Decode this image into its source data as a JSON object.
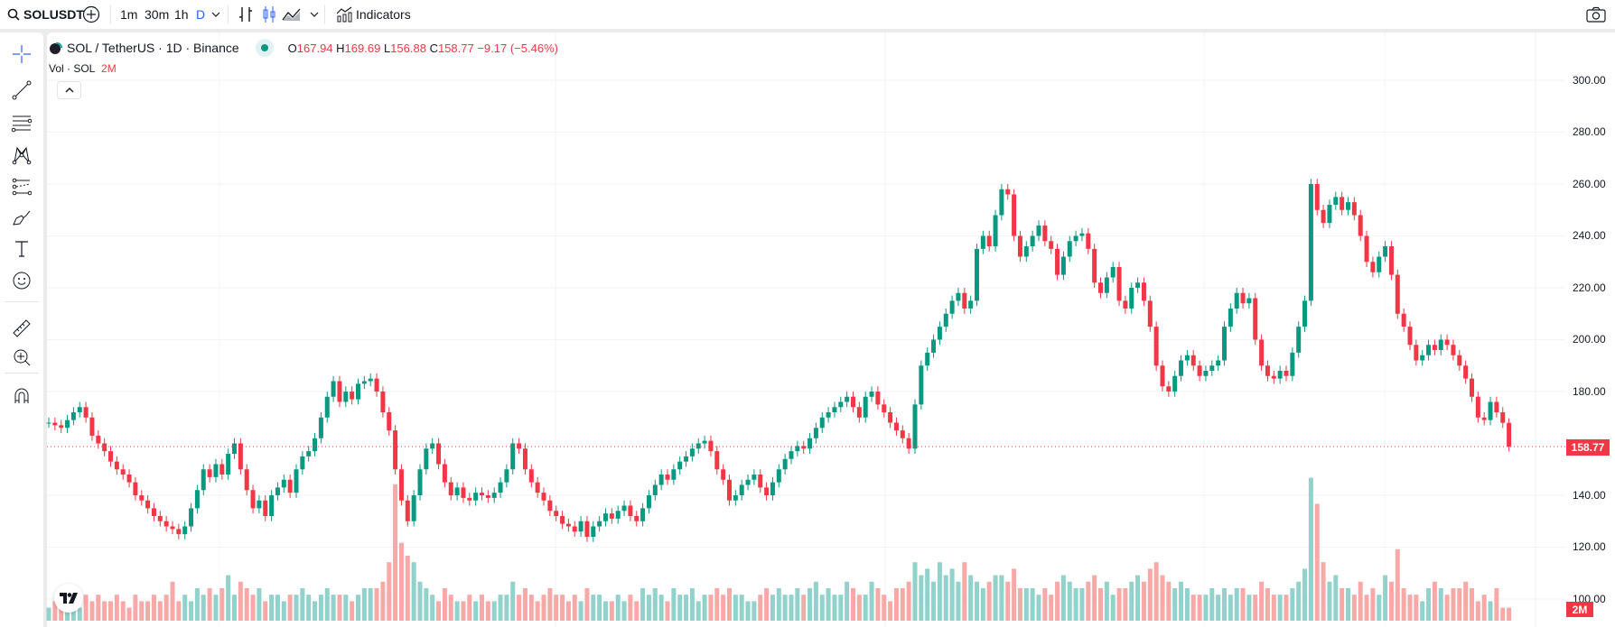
{
  "toolbar": {
    "symbol": "SOLUSDT",
    "intervals": [
      "1m",
      "30m",
      "1h",
      "D"
    ],
    "active_interval": "D",
    "indicators_label": "Indicators"
  },
  "legend": {
    "title": "SOL / TetherUS · 1D · Binance",
    "o_label": "O",
    "o": "167.94",
    "h_label": "H",
    "h": "169.69",
    "l_label": "L",
    "l": "156.88",
    "c_label": "C",
    "c": "158.77",
    "change": "−9.17 (−5.46%)",
    "status_color": "#089981"
  },
  "volume_legend": {
    "label": "Vol · SOL",
    "value": "2M"
  },
  "price_axis": {
    "labels": [
      "300.00",
      "280.00",
      "260.00",
      "240.00",
      "220.00",
      "200.00",
      "180.00",
      "140.00",
      "120.00",
      "100.00"
    ],
    "last_price": "158.77",
    "volume_badge": "2M"
  },
  "colors": {
    "up": "#089981",
    "down": "#f23645",
    "up_volume": "#92d2cc",
    "down_volume": "#f7a9a7"
  },
  "chart_data": {
    "type": "candlestick",
    "symbol": "SOL / TetherUS",
    "interval": "1D",
    "ylim": [
      100,
      300
    ],
    "last_price": 158.77,
    "last_candle": {
      "open": 167.94,
      "high": 169.69,
      "low": 156.88,
      "close": 158.77
    },
    "closes": [
      168,
      167,
      166,
      169,
      172,
      174,
      170,
      163,
      160,
      157,
      153,
      150,
      148,
      145,
      140,
      138,
      135,
      132,
      130,
      128,
      127,
      125,
      128,
      135,
      142,
      150,
      147,
      152,
      148,
      156,
      160,
      150,
      142,
      135,
      138,
      132,
      140,
      143,
      146,
      141,
      150,
      155,
      157,
      162,
      170,
      178,
      184,
      176,
      180,
      177,
      183,
      184,
      185,
      180,
      172,
      165,
      150,
      138,
      130,
      140,
      150,
      158,
      160,
      152,
      145,
      140,
      143,
      139,
      138,
      141,
      140,
      139,
      141,
      145,
      150,
      160,
      158,
      150,
      145,
      141,
      138,
      134,
      132,
      129,
      128,
      126,
      130,
      124,
      128,
      130,
      133,
      131,
      134,
      136,
      132,
      130,
      135,
      140,
      144,
      148,
      146,
      150,
      153,
      155,
      158,
      160,
      161,
      157,
      150,
      146,
      138,
      140,
      144,
      146,
      148,
      143,
      140,
      145,
      150,
      154,
      157,
      159,
      158,
      162,
      166,
      170,
      172,
      174,
      176,
      178,
      174,
      170,
      178,
      180,
      175,
      172,
      168,
      165,
      162,
      158,
      175,
      190,
      195,
      200,
      205,
      210,
      215,
      218,
      212,
      215,
      235,
      240,
      236,
      248,
      258,
      256,
      240,
      232,
      236,
      240,
      244,
      238,
      235,
      225,
      232,
      238,
      240,
      241,
      235,
      222,
      218,
      224,
      228,
      215,
      212,
      220,
      222,
      215,
      205,
      190,
      182,
      180,
      186,
      192,
      194,
      190,
      186,
      188,
      190,
      192,
      205,
      212,
      218,
      214,
      216,
      200,
      190,
      186,
      185,
      188,
      186,
      195,
      205,
      215,
      260,
      250,
      245,
      252,
      255,
      250,
      253,
      248,
      240,
      230,
      226,
      232,
      236,
      225,
      210,
      205,
      198,
      192,
      194,
      198,
      196,
      200,
      198,
      194,
      190,
      185,
      178,
      170,
      169,
      176,
      172,
      167.94,
      158.77
    ],
    "volumes_m": [
      2,
      3,
      2,
      3,
      3,
      2,
      4,
      3,
      4,
      3,
      3,
      4,
      3,
      2,
      4,
      3,
      3,
      4,
      3,
      4,
      6,
      3,
      4,
      3,
      5,
      4,
      5,
      4,
      5,
      7,
      4,
      6,
      5,
      4,
      5,
      3,
      4,
      4,
      3,
      4,
      4,
      5,
      4,
      3,
      4,
      5,
      4,
      4,
      4,
      3,
      4,
      5,
      5,
      5,
      6,
      9,
      21,
      12,
      10,
      9,
      6,
      5,
      4,
      3,
      5,
      4,
      3,
      3,
      4,
      3,
      4,
      3,
      3,
      4,
      4,
      6,
      4,
      5,
      4,
      3,
      4,
      5,
      4,
      4,
      3,
      4,
      3,
      5,
      4,
      4,
      3,
      3,
      4,
      3,
      4,
      3,
      5,
      4,
      5,
      4,
      3,
      5,
      4,
      4,
      5,
      3,
      4,
      4,
      5,
      4,
      5,
      4,
      4,
      3,
      3,
      4,
      5,
      4,
      5,
      4,
      4,
      5,
      4,
      5,
      6,
      4,
      5,
      4,
      4,
      6,
      5,
      4,
      4,
      6,
      5,
      4,
      3,
      5,
      5,
      6,
      9,
      7,
      8,
      6,
      9,
      7,
      8,
      6,
      9,
      7,
      6,
      5,
      6,
      7,
      7,
      6,
      8,
      5,
      5,
      5,
      4,
      5,
      4,
      6,
      7,
      6,
      5,
      5,
      6,
      7,
      5,
      6,
      4,
      5,
      5,
      6,
      7,
      6,
      8,
      9,
      7,
      6,
      5,
      6,
      5,
      4,
      4,
      4,
      5,
      4,
      5,
      4,
      5,
      5,
      4,
      4,
      6,
      5,
      4,
      4,
      4,
      5,
      6,
      8,
      22,
      18,
      9,
      6,
      7,
      5,
      5,
      4,
      6,
      4,
      5,
      4,
      7,
      6,
      11,
      5,
      4,
      4,
      3,
      5,
      6,
      5,
      4,
      5,
      5,
      6,
      5,
      3,
      4,
      3,
      5,
      2,
      2
    ]
  }
}
